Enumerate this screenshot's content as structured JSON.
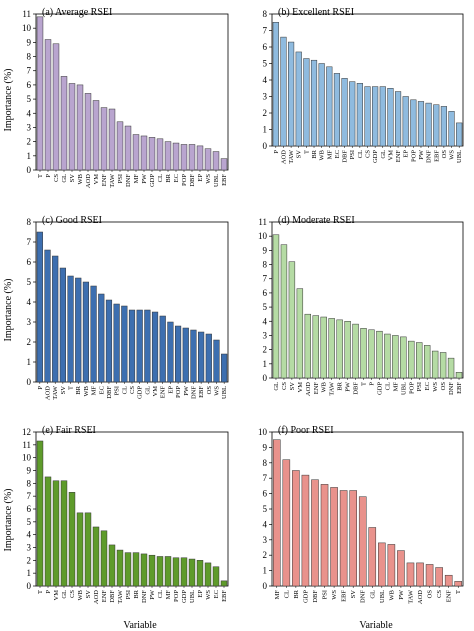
{
  "figure": {
    "ylabel": "Importance (%)",
    "xlabel": "Variable"
  },
  "chart_data": [
    {
      "type": "bar",
      "title": "(a) Average RSEI",
      "ylabel": "Importance (%)",
      "xlabel": "",
      "ylim": [
        0,
        11
      ],
      "yticks": [
        0,
        1,
        2,
        3,
        4,
        5,
        6,
        7,
        8,
        9,
        10,
        11
      ],
      "color": "#b9a5cf",
      "categories": [
        "T",
        "P",
        "CS",
        "GL",
        "SV",
        "WB",
        "AOD",
        "VM",
        "ENF",
        "TAW",
        "PSI",
        "DNF",
        "MF",
        "PW",
        "GDP",
        "CL",
        "BR",
        "EC",
        "POP",
        "DBF",
        "EP",
        "WS",
        "UBL",
        "EBF"
      ],
      "values": [
        10.8,
        9.2,
        8.9,
        6.6,
        6.1,
        6.0,
        5.4,
        4.9,
        4.4,
        4.3,
        3.4,
        3.1,
        2.5,
        2.4,
        2.3,
        2.2,
        2.0,
        1.9,
        1.8,
        1.8,
        1.7,
        1.5,
        1.3,
        0.8
      ]
    },
    {
      "type": "bar",
      "title": "(b) Excellent RSEI",
      "ylabel": "",
      "xlabel": "",
      "ylim": [
        0,
        8
      ],
      "yticks": [
        0,
        1,
        2,
        3,
        4,
        5,
        6,
        7,
        8
      ],
      "color": "#8fbbdf",
      "categories": [
        "P",
        "AOD",
        "TAW",
        "SV",
        "T",
        "BR",
        "WB",
        "MF",
        "EC",
        "DBF",
        "PSI",
        "CL",
        "CS",
        "GDP",
        "GL",
        "VM",
        "ENF",
        "EP",
        "POP",
        "PW",
        "DNF",
        "EBF",
        "OS",
        "WS",
        "UBL"
      ],
      "values": [
        7.5,
        6.6,
        6.3,
        5.7,
        5.3,
        5.2,
        5.0,
        4.8,
        4.4,
        4.1,
        3.9,
        3.8,
        3.6,
        3.6,
        3.6,
        3.5,
        3.3,
        3.0,
        2.8,
        2.7,
        2.6,
        2.5,
        2.4,
        2.1,
        1.4
      ]
    },
    {
      "type": "bar",
      "title": "(c) Good RSEI",
      "ylabel": "Importance (%)",
      "xlabel": "",
      "ylim": [
        0,
        8
      ],
      "yticks": [
        0,
        1,
        2,
        3,
        4,
        5,
        6,
        7,
        8
      ],
      "color": "#3d6fb0",
      "categories": [
        "P",
        "AOD",
        "TAW",
        "SV",
        "T",
        "BR",
        "WB",
        "MF",
        "EC",
        "DBF",
        "PSI",
        "CL",
        "CS",
        "GDP",
        "GL",
        "VM",
        "ENF",
        "EP",
        "POP",
        "PW",
        "DNF",
        "EBF",
        "OS",
        "WS",
        "UBL"
      ],
      "values": [
        7.5,
        6.6,
        6.3,
        5.7,
        5.3,
        5.2,
        5.0,
        4.8,
        4.4,
        4.1,
        3.9,
        3.8,
        3.6,
        3.6,
        3.6,
        3.5,
        3.3,
        3.0,
        2.8,
        2.7,
        2.6,
        2.5,
        2.4,
        2.1,
        1.4
      ]
    },
    {
      "type": "bar",
      "title": "(d) Moderate RSEI",
      "ylabel": "",
      "xlabel": "",
      "ylim": [
        0,
        11
      ],
      "yticks": [
        0,
        1,
        2,
        3,
        4,
        5,
        6,
        7,
        8,
        9,
        10,
        11
      ],
      "color": "#b5dba4",
      "categories": [
        "GL",
        "CS",
        "SV",
        "VM",
        "AOD",
        "ENF",
        "WB",
        "TAW",
        "BR",
        "PW",
        "DBF",
        "T",
        "P",
        "GDP",
        "CL",
        "MF",
        "UBL",
        "POP",
        "PSI",
        "EC",
        "WS",
        "OS",
        "DNF",
        "EBF"
      ],
      "values": [
        10.1,
        9.4,
        8.2,
        6.3,
        4.5,
        4.4,
        4.3,
        4.2,
        4.1,
        4.0,
        3.8,
        3.5,
        3.4,
        3.3,
        3.1,
        3.0,
        2.9,
        2.6,
        2.5,
        2.3,
        1.9,
        1.8,
        1.4,
        0.4
      ]
    },
    {
      "type": "bar",
      "title": "(e) Fair RSEI",
      "ylabel": "Importance (%)",
      "xlabel": "Variable",
      "ylim": [
        0,
        12
      ],
      "yticks": [
        0,
        1,
        2,
        3,
        4,
        5,
        6,
        7,
        8,
        9,
        10,
        11,
        12
      ],
      "color": "#5e9b2b",
      "categories": [
        "T",
        "P",
        "VM",
        "GL",
        "CS",
        "WB",
        "SV",
        "AOD",
        "ENF",
        "DBF",
        "TAW",
        "PSI",
        "BR",
        "DNF",
        "PW",
        "CL",
        "MF",
        "POP",
        "GDP",
        "UBL",
        "EP",
        "WS",
        "EC",
        "EBF"
      ],
      "values": [
        11.3,
        8.5,
        8.2,
        8.2,
        7.3,
        5.7,
        5.7,
        4.6,
        4.3,
        3.2,
        2.8,
        2.6,
        2.6,
        2.5,
        2.4,
        2.3,
        2.3,
        2.2,
        2.2,
        2.1,
        2.0,
        1.8,
        1.5,
        0.4
      ]
    },
    {
      "type": "bar",
      "title": "(f) Poor RSEI",
      "ylabel": "",
      "xlabel": "Variable",
      "ylim": [
        0,
        10
      ],
      "yticks": [
        0,
        1,
        2,
        3,
        4,
        5,
        6,
        7,
        8,
        9,
        10
      ],
      "color": "#e9928c",
      "categories": [
        "MF",
        "CL",
        "BR",
        "GDP",
        "DBF",
        "PSI",
        "WS",
        "EBF",
        "SV",
        "DNF",
        "GL",
        "UBL",
        "WB",
        "PW",
        "TAW",
        "AOD",
        "OS",
        "CS",
        "ENF",
        "T"
      ],
      "values": [
        9.5,
        8.2,
        7.5,
        7.2,
        6.9,
        6.6,
        6.4,
        6.2,
        6.2,
        5.8,
        3.8,
        2.8,
        2.7,
        2.3,
        1.5,
        1.5,
        1.4,
        1.2,
        0.7,
        0.3
      ]
    }
  ]
}
